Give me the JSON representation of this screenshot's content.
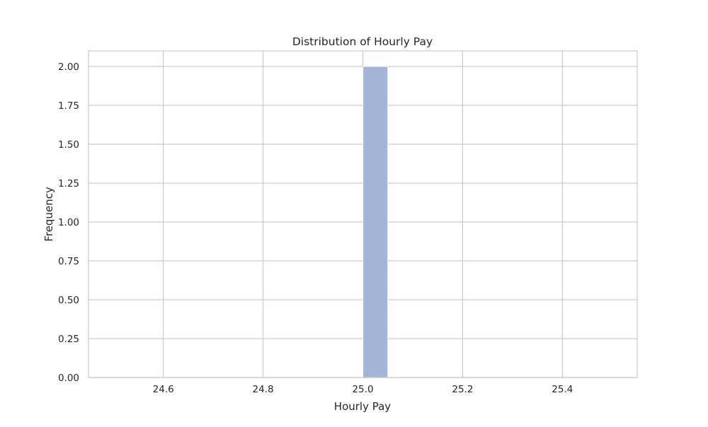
{
  "chart_data": {
    "type": "bar",
    "subtype": "histogram",
    "title": "Distribution of Hourly Pay",
    "xlabel": "Hourly Pay",
    "ylabel": "Frequency",
    "xlim": [
      24.45,
      25.55
    ],
    "ylim": [
      0,
      2.1
    ],
    "xticks": [
      24.6,
      24.8,
      25.0,
      25.2,
      25.4
    ],
    "xtick_labels": [
      "24.6",
      "24.8",
      "25.0",
      "25.2",
      "25.4"
    ],
    "yticks": [
      0,
      0.25,
      0.5,
      0.75,
      1.0,
      1.25,
      1.5,
      1.75,
      2.0
    ],
    "ytick_labels": [
      "0.00",
      "0.25",
      "0.50",
      "0.75",
      "1.00",
      "1.25",
      "1.50",
      "1.75",
      "2.00"
    ],
    "bins": [
      {
        "start": 25.0,
        "end": 25.05,
        "count": 2
      }
    ],
    "grid": true,
    "bar_color": "#a3b5d6",
    "bar_edge_color": "#ffffff",
    "grid_color": "#cccccc",
    "axes_edge_color": "#cccccc"
  }
}
